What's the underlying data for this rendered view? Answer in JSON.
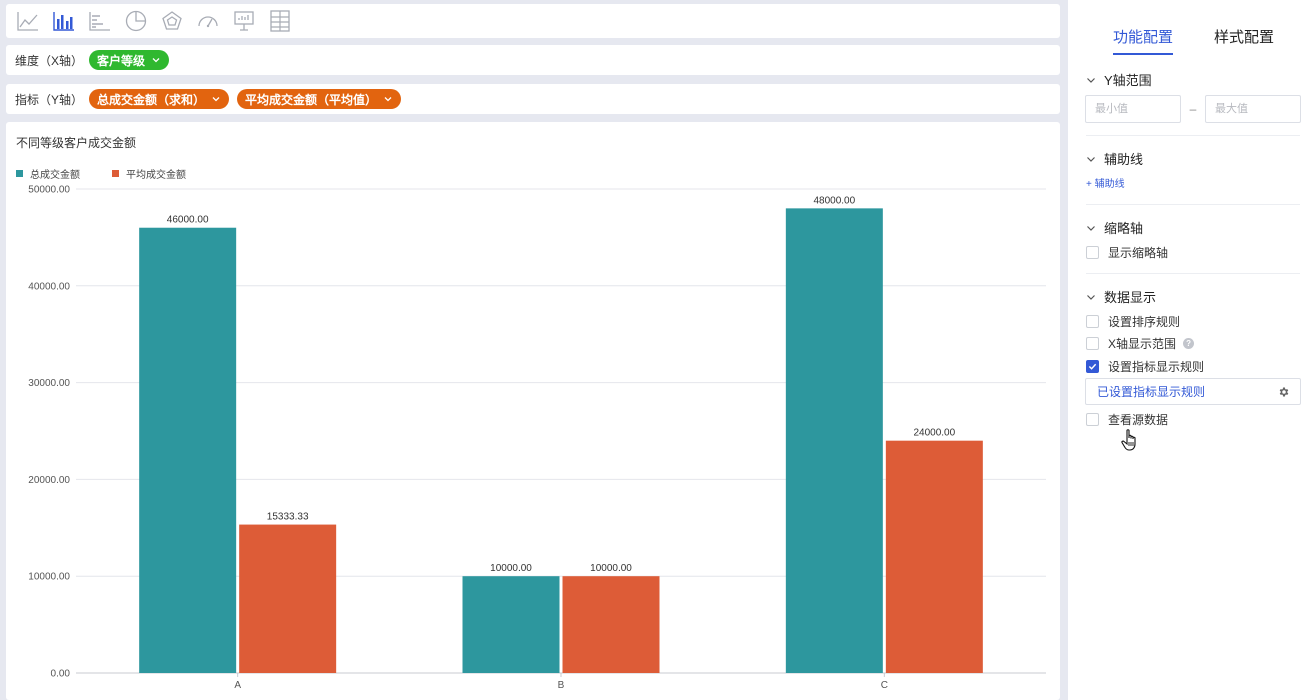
{
  "toolbar": {
    "icons": [
      "line-chart-icon",
      "bar-chart-icon",
      "horizontal-bar-chart-icon",
      "pie-chart-icon",
      "radar-chart-icon",
      "gauge-chart-icon",
      "dashboard-board-icon",
      "table-grid-icon"
    ],
    "active_index": 1
  },
  "dimension": {
    "label": "维度（X轴）",
    "fields": [
      "客户等级"
    ]
  },
  "measure": {
    "label": "指标（Y轴）",
    "fields": [
      "总成交金额（求和）",
      "平均成交金额（平均值）"
    ]
  },
  "colors": {
    "accent": "#3359d6",
    "series1": "#2d979e",
    "series2": "#dd5c37",
    "pill_green": "#2fb82f",
    "pill_orange": "#e2640f"
  },
  "chart_data": {
    "type": "bar",
    "title": "不同等级客户成交金额",
    "categories": [
      "A",
      "B",
      "C"
    ],
    "series": [
      {
        "name": "总成交金额",
        "values": [
          46000,
          10000,
          48000
        ]
      },
      {
        "name": "平均成交金额",
        "values": [
          15333.33,
          10000,
          24000
        ]
      }
    ],
    "ylim": [
      0,
      50000
    ],
    "yticks": [
      0,
      10000,
      20000,
      30000,
      40000,
      50000
    ],
    "grid": true,
    "legend_position": "top-left",
    "data_labels": true
  },
  "sidebar": {
    "tabs": [
      "功能配置",
      "样式配置"
    ],
    "active_tab": 0,
    "y_range": {
      "title": "Y轴范围",
      "min_placeholder": "最小值",
      "max_placeholder": "最大值",
      "separator": "–"
    },
    "aux_line": {
      "title": "辅助线",
      "add_label": "+ 辅助线"
    },
    "thumb_axis": {
      "title": "缩略轴",
      "checkbox": "显示缩略轴"
    },
    "data_display": {
      "title": "数据显示",
      "sort_rule": "设置排序规则",
      "x_range": "X轴显示范围",
      "metric_rule": "设置指标显示规则",
      "metric_rule_set": "已设置指标显示规则",
      "view_source": "查看源数据"
    }
  }
}
